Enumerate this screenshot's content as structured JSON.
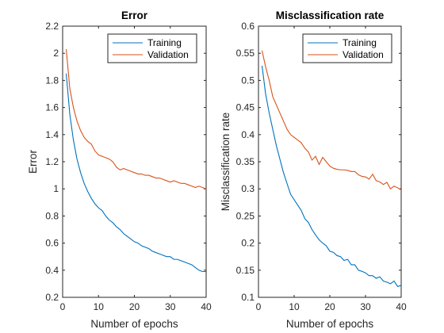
{
  "chart_data": [
    {
      "type": "line",
      "title": "Error",
      "xlabel": "Number of epochs",
      "ylabel": "Error",
      "xlim": [
        0,
        40
      ],
      "ylim": [
        0.2,
        2.2
      ],
      "xticks": [
        0,
        10,
        20,
        30,
        40
      ],
      "yticks": [
        0.2,
        0.4,
        0.6,
        0.8,
        1,
        1.2,
        1.4,
        1.6,
        1.8,
        2,
        2.2
      ],
      "ytick_labels": [
        "0.2",
        "0.4",
        "0.6",
        "0.8",
        "1",
        "1.2",
        "1.4",
        "1.6",
        "1.8",
        "2",
        "2.2"
      ],
      "legend": "top-right",
      "grid": false,
      "x": [
        1,
        2,
        3,
        4,
        5,
        6,
        7,
        8,
        9,
        10,
        11,
        12,
        13,
        14,
        15,
        16,
        17,
        18,
        19,
        20,
        21,
        22,
        23,
        24,
        25,
        26,
        27,
        28,
        29,
        30,
        31,
        32,
        33,
        34,
        35,
        36,
        37,
        38,
        39,
        40
      ],
      "series": [
        {
          "name": "Training",
          "color": "#0072BD",
          "values": [
            1.85,
            1.55,
            1.36,
            1.22,
            1.12,
            1.04,
            0.98,
            0.93,
            0.89,
            0.86,
            0.84,
            0.8,
            0.77,
            0.75,
            0.72,
            0.7,
            0.67,
            0.65,
            0.63,
            0.61,
            0.6,
            0.58,
            0.57,
            0.56,
            0.54,
            0.53,
            0.52,
            0.51,
            0.5,
            0.5,
            0.48,
            0.48,
            0.47,
            0.46,
            0.45,
            0.44,
            0.42,
            0.4,
            0.39,
            0.39
          ]
        },
        {
          "name": "Validation",
          "color": "#D95319",
          "values": [
            2.03,
            1.74,
            1.6,
            1.5,
            1.43,
            1.38,
            1.35,
            1.33,
            1.28,
            1.25,
            1.24,
            1.23,
            1.22,
            1.2,
            1.16,
            1.14,
            1.15,
            1.14,
            1.13,
            1.12,
            1.11,
            1.11,
            1.1,
            1.1,
            1.09,
            1.08,
            1.08,
            1.07,
            1.06,
            1.05,
            1.06,
            1.05,
            1.04,
            1.04,
            1.03,
            1.02,
            1.01,
            1.02,
            1.01,
            1.0
          ]
        }
      ]
    },
    {
      "type": "line",
      "title": "Misclassification rate",
      "xlabel": "Number of epochs",
      "ylabel": "Misclassification rate",
      "xlim": [
        0,
        40
      ],
      "ylim": [
        0.1,
        0.6
      ],
      "xticks": [
        0,
        10,
        20,
        30,
        40
      ],
      "yticks": [
        0.1,
        0.15,
        0.2,
        0.25,
        0.3,
        0.35,
        0.4,
        0.45,
        0.5,
        0.55,
        0.6
      ],
      "ytick_labels": [
        "0.1",
        "0.15",
        "0.2",
        "0.25",
        "0.3",
        "0.35",
        "0.4",
        "0.45",
        "0.5",
        "0.55",
        "0.6"
      ],
      "legend": "top-right",
      "grid": false,
      "x": [
        1,
        2,
        3,
        4,
        5,
        6,
        7,
        8,
        9,
        10,
        11,
        12,
        13,
        14,
        15,
        16,
        17,
        18,
        19,
        20,
        21,
        22,
        23,
        24,
        25,
        26,
        27,
        28,
        29,
        30,
        31,
        32,
        33,
        34,
        35,
        36,
        37,
        38,
        39,
        40
      ],
      "series": [
        {
          "name": "Training",
          "color": "#0072BD",
          "values": [
            0.527,
            0.475,
            0.44,
            0.41,
            0.38,
            0.355,
            0.33,
            0.31,
            0.29,
            0.28,
            0.27,
            0.26,
            0.245,
            0.238,
            0.225,
            0.215,
            0.206,
            0.2,
            0.195,
            0.185,
            0.183,
            0.177,
            0.175,
            0.168,
            0.17,
            0.16,
            0.16,
            0.15,
            0.148,
            0.145,
            0.14,
            0.14,
            0.135,
            0.138,
            0.13,
            0.128,
            0.125,
            0.13,
            0.12,
            0.122
          ]
        },
        {
          "name": "Validation",
          "color": "#D95319",
          "values": [
            0.555,
            0.525,
            0.5,
            0.47,
            0.455,
            0.44,
            0.425,
            0.41,
            0.4,
            0.395,
            0.39,
            0.385,
            0.375,
            0.368,
            0.353,
            0.36,
            0.345,
            0.358,
            0.35,
            0.342,
            0.338,
            0.336,
            0.335,
            0.335,
            0.334,
            0.332,
            0.332,
            0.326,
            0.323,
            0.322,
            0.318,
            0.327,
            0.315,
            0.313,
            0.308,
            0.312,
            0.3,
            0.305,
            0.302,
            0.298
          ]
        }
      ]
    }
  ]
}
